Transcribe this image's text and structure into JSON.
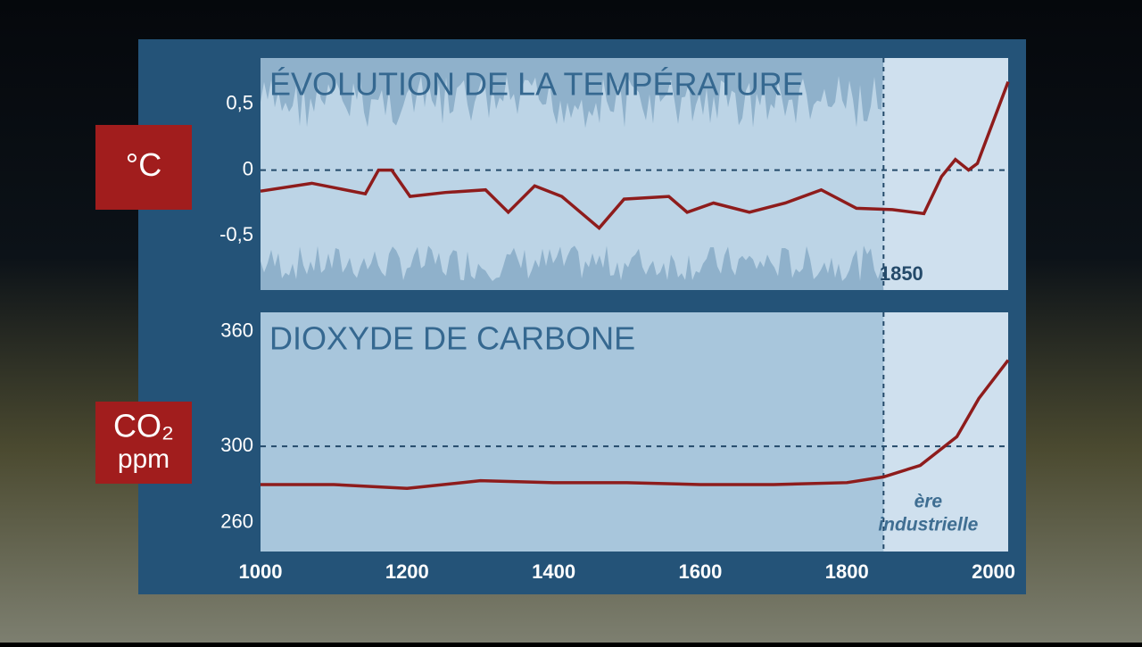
{
  "chart_data": [
    {
      "type": "line",
      "title": "ÉVOLUTION DE LA TEMPÉRATURE",
      "unit_label": "°C",
      "x": [
        1000,
        1070,
        1143,
        1161,
        1179,
        1204,
        1252,
        1307,
        1338,
        1374,
        1411,
        1462,
        1496,
        1557,
        1582,
        1618,
        1667,
        1716,
        1765,
        1813,
        1862,
        1905,
        1929,
        1948,
        1966,
        1978,
        2020
      ],
      "series": [
        {
          "color": "#8e1c1c",
          "values": [
            -0.16,
            -0.1,
            -0.18,
            0.0,
            0.0,
            -0.2,
            -0.17,
            -0.15,
            -0.32,
            -0.12,
            -0.2,
            -0.44,
            -0.22,
            -0.2,
            -0.32,
            -0.25,
            -0.32,
            -0.25,
            -0.15,
            -0.29,
            -0.3,
            -0.33,
            -0.05,
            0.08,
            0.0,
            0.05,
            0.67
          ]
        }
      ],
      "xlim": [
        1000,
        2020
      ],
      "ylim": [
        -0.91,
        0.85
      ],
      "yticks": [
        {
          "value": 0.5,
          "label": "0,5"
        },
        0,
        {
          "value": -0.5,
          "label": "-0,5"
        }
      ],
      "dashed_y": 0,
      "marker_x": 1850
    },
    {
      "type": "line",
      "title": "DIOXYDE DE CARBONE",
      "unit_label": "CO₂",
      "unit_sublabel": "ppm",
      "x": [
        1000,
        1100,
        1200,
        1300,
        1400,
        1500,
        1600,
        1700,
        1800,
        1850,
        1900,
        1950,
        1980,
        2020
      ],
      "series": [
        {
          "color": "#8e1c1c",
          "values": [
            280,
            280,
            278,
            282,
            281,
            281,
            280,
            280,
            281,
            284,
            290,
            305,
            325,
            345
          ]
        }
      ],
      "xlim": [
        1000,
        2020
      ],
      "ylim": [
        245,
        370
      ],
      "yticks": [
        360,
        300,
        260
      ],
      "xticks": [
        1000,
        1200,
        1400,
        1600,
        1800,
        2000
      ],
      "dashed_y": 300,
      "marker_x": 1850,
      "annotation": [
        "ère",
        "industrielle"
      ]
    }
  ]
}
